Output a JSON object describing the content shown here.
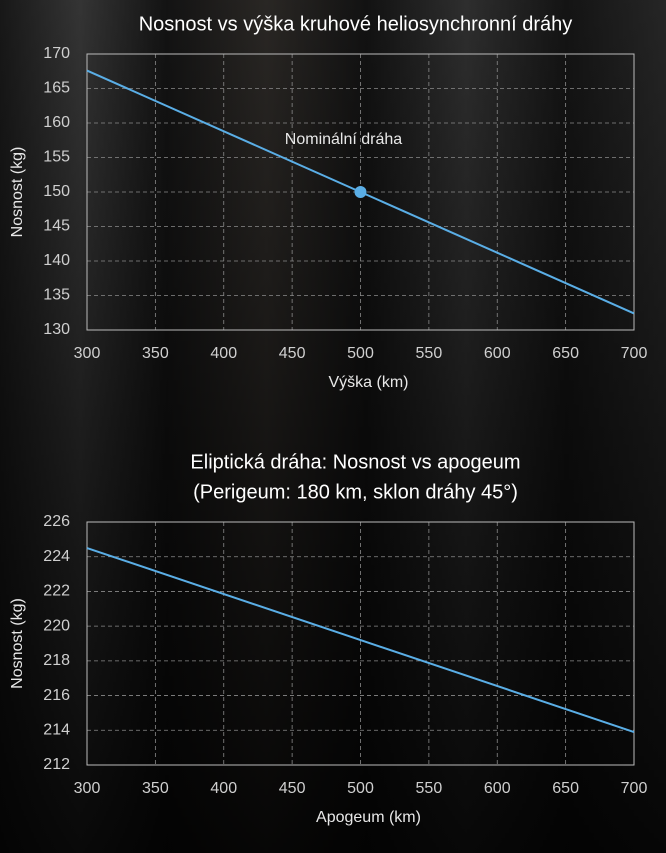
{
  "chart_data": [
    {
      "type": "line",
      "title": [
        "Nosnost vs výška kruhové heliosynchronní dráhy"
      ],
      "xlabel": "Výška (km)",
      "ylabel": "Nosnost (kg)",
      "x": [
        300,
        700
      ],
      "series": [
        {
          "name": "Nosnost",
          "color": "#5aaee6",
          "values": [
            167.6,
            132.4
          ]
        }
      ],
      "annotation": {
        "text": "Nominální dráha",
        "x": 500,
        "y": 150
      },
      "xlim": [
        300,
        700
      ],
      "xticks": [
        300,
        350,
        400,
        450,
        500,
        550,
        600,
        650,
        700
      ],
      "ylim": [
        130,
        170
      ],
      "yticks": [
        130,
        135,
        140,
        145,
        150,
        155,
        160,
        165,
        170
      ],
      "grid": true
    },
    {
      "type": "line",
      "title": [
        "Eliptická dráha: Nosnost vs apogeum",
        "(Perigeum: 180 km, sklon dráhy 45°)"
      ],
      "xlabel": "Apogeum (km)",
      "ylabel": "Nosnost (kg)",
      "x": [
        300,
        700
      ],
      "series": [
        {
          "name": "Nosnost",
          "color": "#5aaee6",
          "values": [
            224.5,
            213.9
          ]
        }
      ],
      "xlim": [
        300,
        700
      ],
      "xticks": [
        300,
        350,
        400,
        450,
        500,
        550,
        600,
        650,
        700
      ],
      "ylim": [
        212,
        226
      ],
      "yticks": [
        212,
        214,
        216,
        218,
        220,
        222,
        224,
        226
      ],
      "grid": true
    }
  ]
}
